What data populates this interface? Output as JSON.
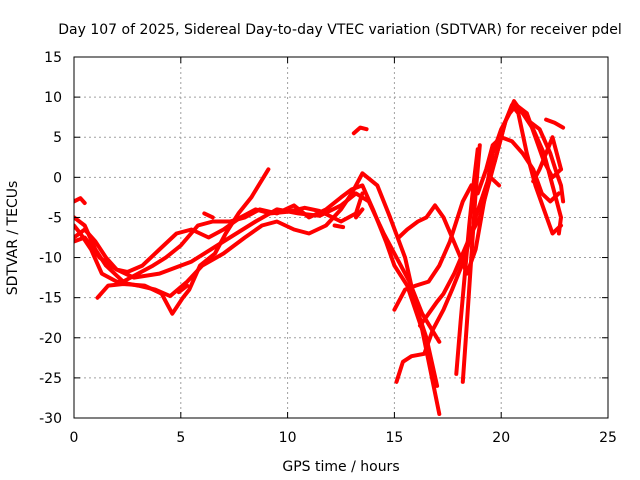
{
  "chart_data": {
    "type": "scatter",
    "title": "Day 107 of 2025, Sidereal Day-to-day VTEC variation (SDTVAR) for receiver pdel",
    "xlabel": "GPS time / hours",
    "ylabel": "SDTVAR / TECUs",
    "xlim": [
      0,
      25
    ],
    "ylim": [
      -30,
      15
    ],
    "xticks": [
      0,
      5,
      10,
      15,
      20,
      25
    ],
    "yticks": [
      -30,
      -25,
      -20,
      -15,
      -10,
      -5,
      0,
      5,
      10,
      15
    ],
    "grid": true,
    "marker": "+",
    "color": "#ff0000",
    "series": [
      {
        "name": "s1",
        "points": [
          [
            0,
            -8
          ],
          [
            0.5,
            -7.5
          ],
          [
            1.2,
            -10
          ],
          [
            2,
            -11.5
          ],
          [
            2.8,
            -12.5
          ],
          [
            4,
            -12
          ],
          [
            5.5,
            -10.5
          ],
          [
            7,
            -8
          ],
          [
            8.5,
            -5.5
          ],
          [
            9.5,
            -4
          ],
          [
            10.5,
            -4.5
          ],
          [
            11.5,
            -4.8
          ],
          [
            12.5,
            -3.5
          ],
          [
            13.2,
            -2
          ],
          [
            13.8,
            -3
          ],
          [
            14.5,
            -7
          ],
          [
            15.2,
            -10.5
          ],
          [
            15.7,
            -13
          ],
          [
            16.3,
            -17
          ],
          [
            17.1,
            -20.5
          ]
        ]
      },
      {
        "name": "s2",
        "points": [
          [
            0,
            -5
          ],
          [
            0.5,
            -6
          ],
          [
            1,
            -9
          ],
          [
            1.5,
            -11
          ],
          [
            2.3,
            -13
          ],
          [
            3,
            -12
          ],
          [
            3.7,
            -11
          ],
          [
            4.3,
            -10
          ],
          [
            5,
            -8.5
          ],
          [
            5.8,
            -6
          ],
          [
            6.5,
            -5.5
          ],
          [
            7.3,
            -5.5
          ],
          [
            8,
            -5
          ],
          [
            8.7,
            -4
          ],
          [
            9.5,
            -4.5
          ],
          [
            10.3,
            -3.5
          ],
          [
            11,
            -5
          ],
          [
            11.8,
            -4
          ],
          [
            12.5,
            -2.5
          ],
          [
            13,
            -1.5
          ],
          [
            13.5,
            -1
          ],
          [
            14,
            -4
          ],
          [
            14.6,
            -8
          ],
          [
            15,
            -11
          ],
          [
            15.6,
            -13.5
          ],
          [
            16.3,
            -19
          ],
          [
            17.1,
            -29.5
          ]
        ]
      },
      {
        "name": "s3",
        "points": [
          [
            0,
            -6
          ],
          [
            0.3,
            -7
          ],
          [
            0.8,
            -9
          ],
          [
            1.3,
            -12
          ],
          [
            2,
            -13
          ],
          [
            3,
            -13.5
          ],
          [
            3.8,
            -14
          ],
          [
            4.5,
            -14.8
          ],
          [
            5.3,
            -13
          ],
          [
            6,
            -11
          ],
          [
            7,
            -9.5
          ],
          [
            8,
            -7.5
          ],
          [
            8.8,
            -6
          ],
          [
            9.5,
            -5.5
          ],
          [
            10.3,
            -6.5
          ],
          [
            11,
            -7
          ],
          [
            11.8,
            -6
          ],
          [
            12.5,
            -4
          ],
          [
            13,
            -2
          ],
          [
            13.5,
            0.5
          ],
          [
            14.2,
            -1
          ],
          [
            14.8,
            -5
          ],
          [
            15.5,
            -10
          ],
          [
            16,
            -16
          ],
          [
            16.5,
            -20
          ],
          [
            17,
            -26
          ]
        ]
      },
      {
        "name": "s4",
        "points": [
          [
            0,
            -7.5
          ],
          [
            0.5,
            -6.5
          ],
          [
            1,
            -8
          ],
          [
            1.5,
            -10
          ],
          [
            2,
            -11.5
          ],
          [
            2.5,
            -11.8
          ],
          [
            3.2,
            -11
          ],
          [
            4,
            -9
          ],
          [
            4.8,
            -7
          ],
          [
            5.5,
            -6.5
          ],
          [
            6.3,
            -7.5
          ],
          [
            7,
            -6.5
          ],
          [
            7.8,
            -5
          ],
          [
            8.5,
            -4
          ],
          [
            9.2,
            -4.5
          ],
          [
            10,
            -4.3
          ],
          [
            10.8,
            -3.8
          ],
          [
            11.5,
            -4.2
          ],
          [
            12.5,
            -5.5
          ],
          [
            13.2,
            -4.5
          ],
          [
            13.5,
            -2
          ]
        ]
      },
      {
        "name": "s5",
        "points": [
          [
            1.1,
            -15
          ],
          [
            1.6,
            -13.5
          ],
          [
            2.3,
            -13.3
          ],
          [
            3.3,
            -13.5
          ],
          [
            4.1,
            -14.5
          ],
          [
            4.6,
            -17
          ],
          [
            5.1,
            -15
          ],
          [
            5.4,
            -14
          ],
          [
            5.9,
            -11
          ],
          [
            6.6,
            -9.5
          ],
          [
            7.1,
            -7
          ],
          [
            7.7,
            -4.5
          ],
          [
            8.3,
            -2.5
          ],
          [
            9.1,
            1
          ]
        ]
      },
      {
        "name": "s6",
        "points": [
          [
            15.1,
            -25.5
          ],
          [
            15.4,
            -23
          ],
          [
            15.8,
            -22.3
          ],
          [
            16.4,
            -22
          ],
          [
            16.8,
            -19
          ],
          [
            17.3,
            -16.5
          ],
          [
            17.7,
            -14
          ],
          [
            18.3,
            -10
          ],
          [
            18.8,
            -5
          ],
          [
            19.3,
            -1
          ],
          [
            19.7,
            2
          ],
          [
            20.2,
            7
          ],
          [
            20.5,
            9
          ],
          [
            20.8,
            8
          ],
          [
            21.2,
            3
          ],
          [
            21.6,
            -1
          ],
          [
            22,
            -4
          ],
          [
            22.4,
            -7
          ],
          [
            22.8,
            -6
          ]
        ]
      },
      {
        "name": "s7",
        "points": [
          [
            15,
            -16.5
          ],
          [
            15.5,
            -14
          ],
          [
            16,
            -13.5
          ],
          [
            16.6,
            -13
          ],
          [
            17.1,
            -11
          ],
          [
            17.6,
            -8
          ],
          [
            18.2,
            -3
          ],
          [
            18.6,
            -1
          ],
          [
            18.9,
            -2
          ],
          [
            19.3,
            1
          ],
          [
            19.6,
            4
          ],
          [
            20,
            5
          ],
          [
            20.5,
            4.5
          ],
          [
            21,
            3
          ],
          [
            21.5,
            1
          ],
          [
            21.9,
            -2
          ],
          [
            22.3,
            -3
          ],
          [
            22.7,
            -2
          ]
        ]
      },
      {
        "name": "s8",
        "points": [
          [
            15.2,
            -7.5
          ],
          [
            15.6,
            -6.5
          ],
          [
            16.1,
            -5.5
          ],
          [
            16.5,
            -5
          ],
          [
            16.9,
            -3.5
          ],
          [
            17.3,
            -5
          ],
          [
            17.7,
            -7.5
          ],
          [
            18.1,
            -10
          ],
          [
            18.4,
            -12
          ],
          [
            18.8,
            -9
          ],
          [
            19.2,
            -3
          ],
          [
            19.6,
            3
          ],
          [
            20,
            6
          ],
          [
            20.4,
            8
          ],
          [
            20.7,
            9
          ],
          [
            21.2,
            8
          ],
          [
            21.6,
            5
          ],
          [
            22,
            2
          ],
          [
            22.4,
            0
          ],
          [
            22.8,
            1
          ]
        ]
      },
      {
        "name": "s9",
        "points": [
          [
            16.2,
            -18.5
          ],
          [
            16.6,
            -17
          ],
          [
            17,
            -15.5
          ],
          [
            17.3,
            -14.5
          ],
          [
            17.8,
            -12
          ],
          [
            18.2,
            -9.5
          ],
          [
            18.6,
            -7
          ],
          [
            19,
            -5
          ],
          [
            19.3,
            -2
          ],
          [
            19.7,
            2
          ],
          [
            20.2,
            7
          ],
          [
            20.6,
            9.5
          ],
          [
            21,
            8
          ],
          [
            21.5,
            6
          ],
          [
            22,
            3
          ],
          [
            22.4,
            -1
          ],
          [
            22.8,
            -5
          ],
          [
            22.7,
            -7
          ]
        ]
      },
      {
        "name": "s10",
        "points": [
          [
            18.2,
            -25.5
          ],
          [
            18.4,
            -18
          ],
          [
            18.6,
            -10
          ],
          [
            18.8,
            -2
          ],
          [
            19,
            4
          ]
        ]
      },
      {
        "name": "s11",
        "points": [
          [
            17.9,
            -24.5
          ],
          [
            18.1,
            -18
          ],
          [
            18.3,
            -12
          ],
          [
            18.5,
            -6
          ],
          [
            18.7,
            -1
          ],
          [
            18.9,
            3.5
          ]
        ]
      },
      {
        "name": "s12",
        "points": [
          [
            21.3,
            7
          ],
          [
            21.8,
            6
          ],
          [
            22.3,
            3
          ],
          [
            22.6,
            0.5
          ],
          [
            22.8,
            -1
          ],
          [
            22.9,
            -3
          ]
        ]
      },
      {
        "name": "s13",
        "points": [
          [
            21.5,
            -0.5
          ],
          [
            21.8,
            1
          ],
          [
            22.1,
            3
          ],
          [
            22.4,
            5
          ],
          [
            22.8,
            1
          ]
        ]
      },
      {
        "name": "s14",
        "points": [
          [
            22.1,
            7.2
          ],
          [
            22.5,
            6.8
          ],
          [
            22.9,
            6.2
          ]
        ]
      },
      {
        "name": "s15",
        "points": [
          [
            13.1,
            5.5
          ],
          [
            13.4,
            6.2
          ],
          [
            13.7,
            6
          ]
        ]
      },
      {
        "name": "s16",
        "points": [
          [
            19.5,
            0
          ],
          [
            19.9,
            -1
          ]
        ]
      },
      {
        "name": "s17",
        "points": [
          [
            0,
            -3
          ],
          [
            0.3,
            -2.6
          ],
          [
            0.5,
            -3.2
          ]
        ]
      },
      {
        "name": "s18",
        "points": [
          [
            6.1,
            -4.5
          ],
          [
            6.5,
            -5
          ]
        ]
      },
      {
        "name": "s19",
        "points": [
          [
            12.2,
            -6
          ],
          [
            12.6,
            -6.2
          ]
        ]
      },
      {
        "name": "s20",
        "points": [
          [
            13.2,
            -5
          ],
          [
            13.5,
            -4
          ]
        ]
      },
      {
        "name": "s21",
        "points": [
          [
            4.9,
            -14.3
          ],
          [
            5.3,
            -13.5
          ]
        ]
      }
    ]
  }
}
